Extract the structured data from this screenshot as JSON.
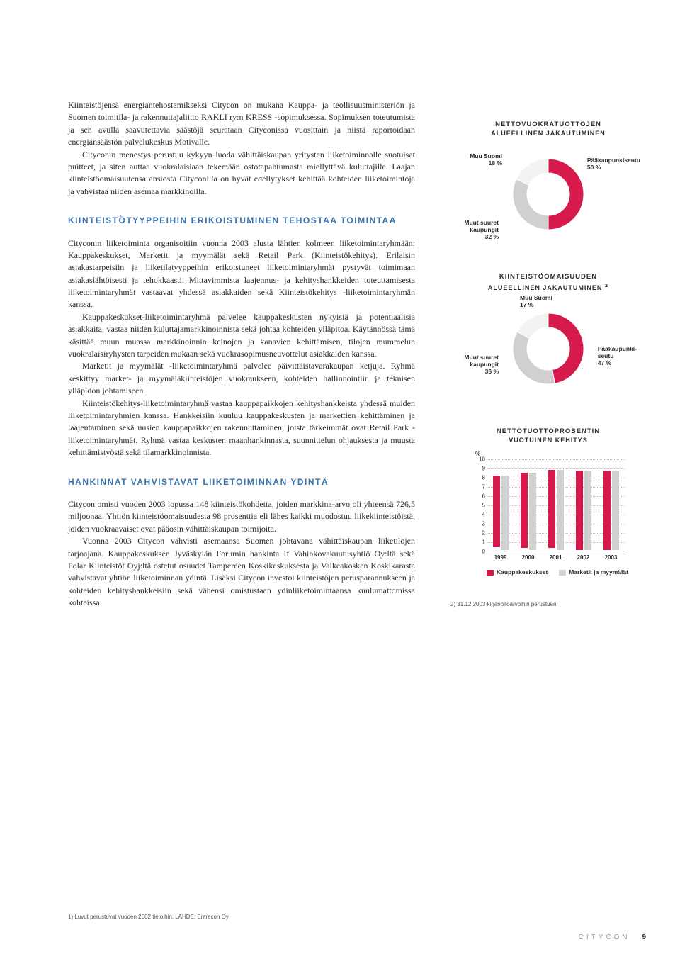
{
  "paragraphs": {
    "p1": "Kiinteistöjensä energiantehostamikseksi Citycon on mukana Kauppa- ja teollisuusministeriön ja Suomen toimitila- ja rakennuttajaliitto RAKLI ry:n KRESS -sopimuksessa. Sopimuksen toteutumista ja sen avulla saavutettavia säästöjä seurataan Cityconissa vuosittain ja niistä raportoidaan energiansäästön palvelukeskus Motivalle.",
    "p2": "Cityconin menestys perustuu kykyyn luoda vähittäiskaupan yritysten liiketoiminnalle suotuisat puitteet, ja siten auttaa vuokralaisiaan tekemään ostotapahtumasta miellyttävä kuluttajille. Laajan kiinteistöomaisuutensa ansiosta Cityconilla on hyvät edellytykset kehittää kohteiden liiketoimintoja ja vahvistaa niiden asemaa markkinoilla.",
    "p3": "Cityconin liiketoiminta organisoitiin vuonna 2003 alusta lähtien kolmeen liiketoimintaryhmään: Kauppakeskukset, Marketit ja myymälät sekä Retail Park (Kiinteistökehitys). Erilaisin asiakastarpeisiin ja liiketilatyyppeihin erikoistuneet liiketoimintaryhmät pystyvät toimimaan asiakaslähtöisesti ja tehokkaasti. Mittavimmista laajennus- ja kehityshankkeiden toteuttamisesta liiketoimintaryhmät vastaavat yhdessä asiakkaiden sekä Kiinteistökehitys -liiketoimintaryhmän kanssa.",
    "p4": "Kauppakeskukset-liiketoimintaryhmä palvelee kauppakeskusten nykyisiä ja potentiaalisia asiakkaita, vastaa niiden kuluttajamarkkinoinnista sekä johtaa kohteiden ylläpitoa. Käytännössä tämä käsittää muun muassa markkinoinnin keinojen ja kanavien kehittämisen, tilojen mummelun vuokralaisiryhysten tarpeiden mukaan sekä vuokrasopimusneuvottelut asiakkaiden kanssa.",
    "p5": "Marketit ja myymälät -liiketoimintaryhmä palvelee päivittäistavarakaupan ketjuja. Ryhmä keskittyy market- ja myymäläkiinteistöjen vuokraukseen, kohteiden hallinnointiin ja teknisen ylläpidon johtamiseen.",
    "p6": "Kiinteistökehitys-liiketoimintaryhmä vastaa kauppapaikkojen kehityshankkeista yhdessä muiden liiketoimintaryhmien kanssa. Hankkeisiin kuuluu kauppakeskusten ja markettien kehittäminen ja laajentaminen sekä uusien kauppapaikkojen rakennuttaminen, joista tärkeimmät ovat Retail Park -liiketoimintaryhmät. Ryhmä vastaa keskusten maanhankinnasta, suunnittelun ohjauksesta ja muusta kehittämistyöstä sekä tilamarkkinoinnista.",
    "p7": "Citycon omisti vuoden 2003 lopussa 148 kiinteistökohdetta, joiden markkina-arvo oli yhteensä 726,5 miljoonaa. Yhtiön kiinteistöomaisuudesta 98 prosenttia eli lähes kaikki muodostuu liikekiinteistöistä, joiden vuokraavaiset ovat pääosin vähittäiskaupan toimijoita.",
    "p8": "Vuonna 2003 Citycon vahvisti asemaansa Suomen johtavana vähittäiskaupan liiketilojen tarjoajana. Kauppakeskuksen Jyväskylän Forumin hankinta If Vahinkovakuutusyhtiö Oy:ltä sekä Polar Kiinteistöt Oyj:ltä ostetut osuudet Tampereen Koskikeskuksesta ja Valkeakosken Koskikarasta vahvistavat yhtiön liiketoiminnan ydintä. Lisäksi Citycon investoi kiinteistöjen perusparannukseen ja kohteiden kehityshankkeisiin sekä vähensi omistustaan ydinliiketoimintaansa kuulumattomissa kohteissa."
  },
  "headings": {
    "h1": "KIINTEISTÖTYYPPEIHIN ERIKOISTUMINEN TEHOSTAA TOIMINTAA",
    "h2": "HANKINNAT VAHVISTAVAT LIIKETOIMINNAN YDINTÄ"
  },
  "chart1": {
    "title": "NETTOVUOKRATUOTTOJEN",
    "subtitle": "ALUEELLINEN JAKAUTUMINEN",
    "slices": [
      {
        "label": "Pääkaupunkiseutu",
        "pct": "50 %",
        "value": 50,
        "color": "#d61a4b"
      },
      {
        "label": "Muut suuret\nkaupungit",
        "pct": "32 %",
        "value": 32,
        "color": "#d0d0d0"
      },
      {
        "label": "Muu Suomi",
        "pct": "18 %",
        "value": 18,
        "color": "#f3f3f3"
      }
    ]
  },
  "chart2": {
    "title": "KIINTEISTÖOMAISUUDEN",
    "subtitle": "ALUEELLINEN JAKAUTUMINEN",
    "sup": "2",
    "slices": [
      {
        "label": "Pääkaupunki-\nseutu",
        "pct": "47 %",
        "value": 47,
        "color": "#d61a4b"
      },
      {
        "label": "Muut suuret\nkaupungit",
        "pct": "36 %",
        "value": 36,
        "color": "#d0d0d0"
      },
      {
        "label": "Muu Suomi",
        "pct": "17 %",
        "value": 17,
        "color": "#f3f3f3"
      }
    ]
  },
  "chart3": {
    "title": "NETTOTUOTTOPROSENTIN",
    "subtitle": "VUOTUINEN KEHITYS",
    "y_unit": "%",
    "y_max": 10,
    "y_ticks": [
      0,
      1,
      2,
      3,
      4,
      5,
      6,
      7,
      8,
      9,
      10
    ],
    "x_labels": [
      "1999",
      "2000",
      "2001",
      "2002",
      "2003"
    ],
    "series": [
      {
        "name": "Kauppakeskukset",
        "color": "#d61a4b",
        "values": [
          7.8,
          8.2,
          8.5,
          8.6,
          8.6
        ]
      },
      {
        "name": "Marketit ja myymälät",
        "color": "#d0d0d0",
        "values": [
          8.1,
          8.4,
          8.7,
          8.6,
          8.6
        ]
      }
    ]
  },
  "footnotes": {
    "left": "1) Luvut perustuvat vuoden 2002 tietoihin. LÄHDE: Entrecon Oy",
    "right": "2) 31.12.2003 kirjanpitoarvoihin perustuen"
  },
  "footer": {
    "brand": "CITYCON",
    "page": "9"
  }
}
